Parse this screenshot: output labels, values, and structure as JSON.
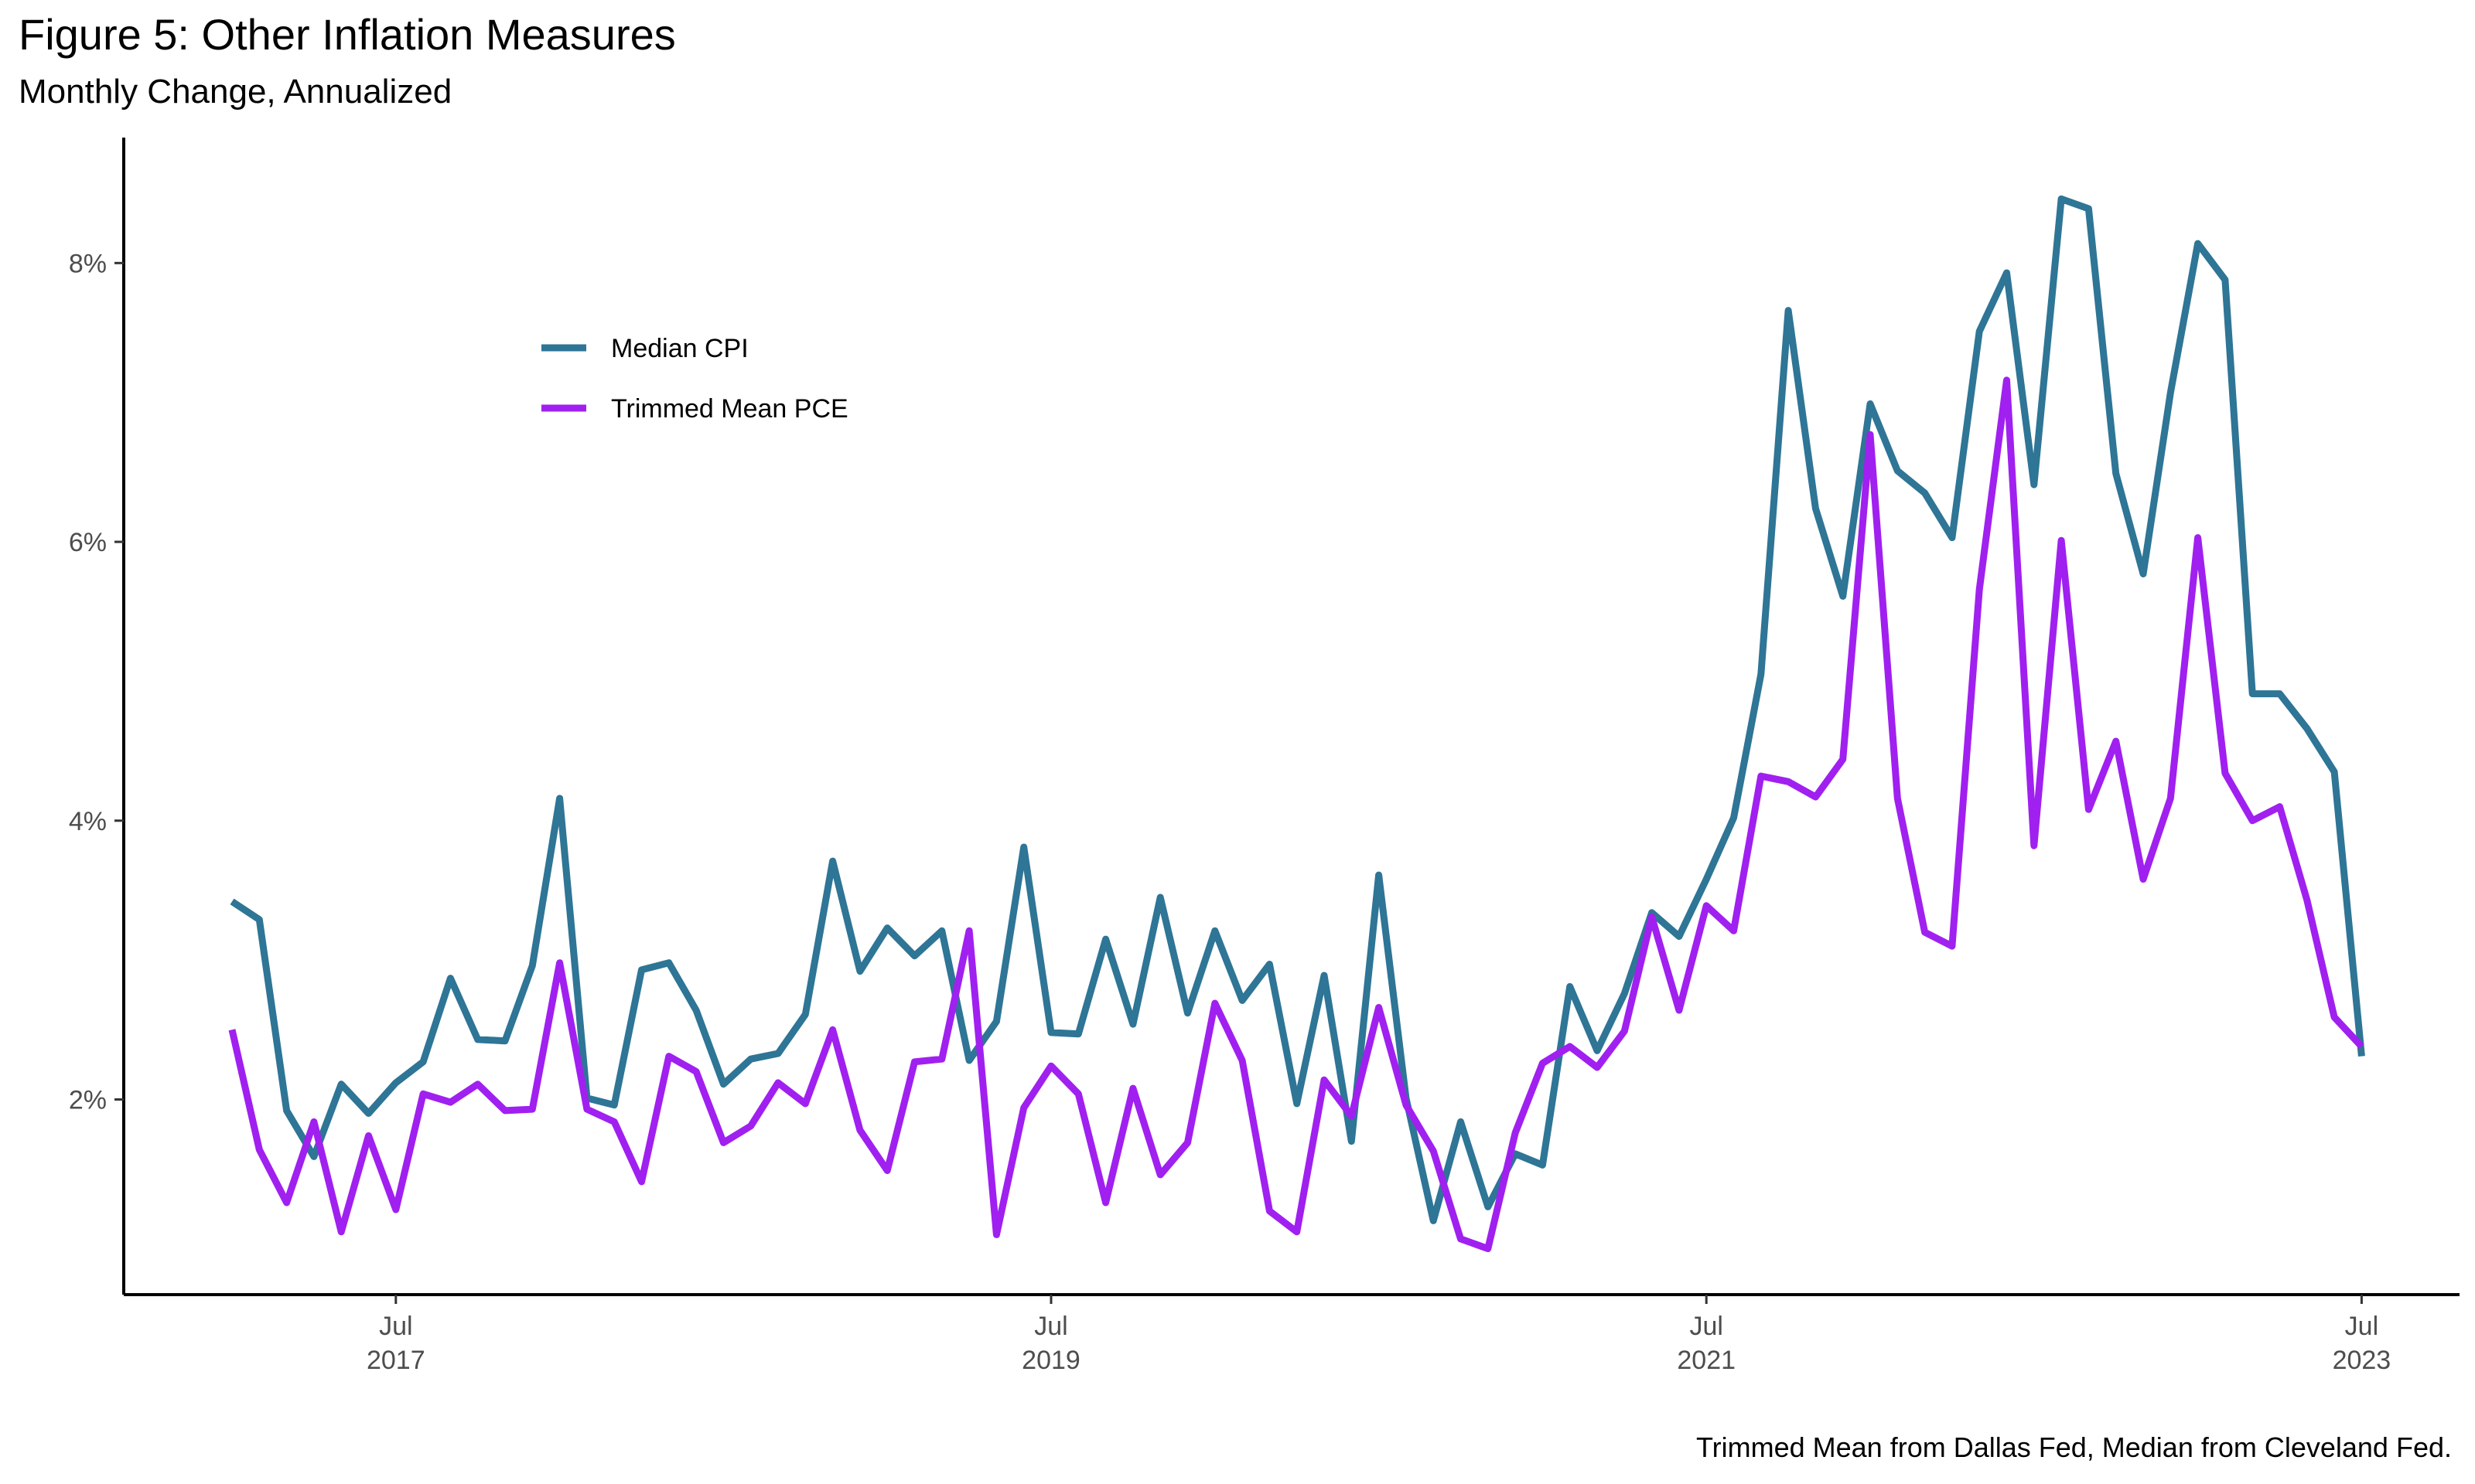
{
  "title": "Figure 5: Other Inflation Measures",
  "subtitle": "Monthly Change, Annualized",
  "caption": "Trimmed Mean from Dallas Fed, Median from Cleveland Fed.",
  "chart_data": {
    "type": "line",
    "title": "Figure 5: Other Inflation Measures",
    "subtitle": "Monthly Change, Annualized",
    "xlabel": "",
    "ylabel": "",
    "x_start": "2017-01",
    "x": [
      "2017-01",
      "2017-02",
      "2017-03",
      "2017-04",
      "2017-05",
      "2017-06",
      "2017-07",
      "2017-08",
      "2017-09",
      "2017-10",
      "2017-11",
      "2017-12",
      "2018-01",
      "2018-02",
      "2018-03",
      "2018-04",
      "2018-05",
      "2018-06",
      "2018-07",
      "2018-08",
      "2018-09",
      "2018-10",
      "2018-11",
      "2018-12",
      "2019-01",
      "2019-02",
      "2019-03",
      "2019-04",
      "2019-05",
      "2019-06",
      "2019-07",
      "2019-08",
      "2019-09",
      "2019-10",
      "2019-11",
      "2019-12",
      "2020-01",
      "2020-02",
      "2020-03",
      "2020-04",
      "2020-05",
      "2020-06",
      "2020-07",
      "2020-08",
      "2020-09",
      "2020-10",
      "2020-11",
      "2020-12",
      "2021-01",
      "2021-02",
      "2021-03",
      "2021-04",
      "2021-05",
      "2021-06",
      "2021-07",
      "2021-08",
      "2021-09",
      "2021-10",
      "2021-11",
      "2021-12",
      "2022-01",
      "2022-02",
      "2022-03",
      "2022-04",
      "2022-05",
      "2022-06",
      "2022-07",
      "2022-08",
      "2022-09",
      "2022-10",
      "2022-11",
      "2022-12",
      "2023-01",
      "2023-02",
      "2023-03",
      "2023-04",
      "2023-05",
      "2023-06",
      "2023-07"
    ],
    "x_ticks": [
      {
        "date": "2017-07",
        "label_month": "Jul",
        "label_year": "2017"
      },
      {
        "date": "2019-07",
        "label_month": "Jul",
        "label_year": "2019"
      },
      {
        "date": "2021-07",
        "label_month": "Jul",
        "label_year": "2021"
      },
      {
        "date": "2023-07",
        "label_month": "Jul",
        "label_year": "2023"
      }
    ],
    "y_ticks": [
      2,
      4,
      6,
      8
    ],
    "y_tick_labels": [
      "2%",
      "4%",
      "6%",
      "8%"
    ],
    "ylim": [
      0.6,
      8.9
    ],
    "grid": false,
    "legend_position": "top-left",
    "series": [
      {
        "name": "Median CPI",
        "color": "#2e7596",
        "values": [
          3.42,
          3.29,
          1.92,
          1.59,
          2.11,
          1.9,
          2.12,
          2.27,
          2.87,
          2.43,
          2.42,
          2.96,
          4.16,
          2.01,
          1.96,
          2.93,
          2.98,
          2.64,
          2.11,
          2.29,
          2.33,
          2.61,
          3.71,
          2.92,
          3.23,
          3.03,
          3.21,
          2.28,
          2.56,
          3.81,
          2.48,
          2.47,
          3.15,
          2.54,
          3.45,
          2.62,
          3.21,
          2.71,
          2.97,
          1.97,
          2.89,
          1.7,
          3.61,
          2.01,
          1.13,
          1.84,
          1.23,
          1.61,
          1.53,
          2.81,
          2.35,
          2.76,
          3.34,
          3.17,
          3.58,
          4.02,
          5.05,
          7.66,
          6.24,
          5.61,
          6.99,
          6.51,
          6.35,
          6.03,
          7.51,
          7.93,
          6.41,
          8.46,
          8.39,
          6.49,
          5.77,
          7.07,
          8.14,
          7.88,
          4.91,
          4.91,
          4.66,
          4.35,
          2.31
        ]
      },
      {
        "name": "Trimmed Mean PCE",
        "color": "#a020f0",
        "values": [
          2.5,
          1.64,
          1.26,
          1.84,
          1.05,
          1.74,
          1.21,
          2.04,
          1.98,
          2.11,
          1.92,
          1.93,
          2.98,
          1.93,
          1.84,
          1.41,
          2.31,
          2.2,
          1.69,
          1.81,
          2.12,
          1.97,
          2.5,
          1.78,
          1.49,
          2.27,
          2.29,
          3.21,
          1.03,
          1.94,
          2.24,
          2.04,
          1.26,
          2.08,
          1.46,
          1.69,
          2.69,
          2.28,
          1.2,
          1.05,
          2.14,
          1.88,
          2.66,
          1.96,
          1.63,
          1.0,
          0.93,
          1.76,
          2.26,
          2.38,
          2.23,
          2.49,
          3.31,
          2.64,
          3.39,
          3.21,
          4.32,
          4.28,
          4.17,
          4.44,
          6.77,
          4.16,
          3.2,
          3.1,
          5.66,
          7.16,
          3.82,
          6.01,
          4.08,
          4.57,
          3.58,
          4.16,
          6.03,
          4.34,
          4.0,
          4.1,
          3.43,
          2.59,
          2.38
        ]
      }
    ]
  }
}
